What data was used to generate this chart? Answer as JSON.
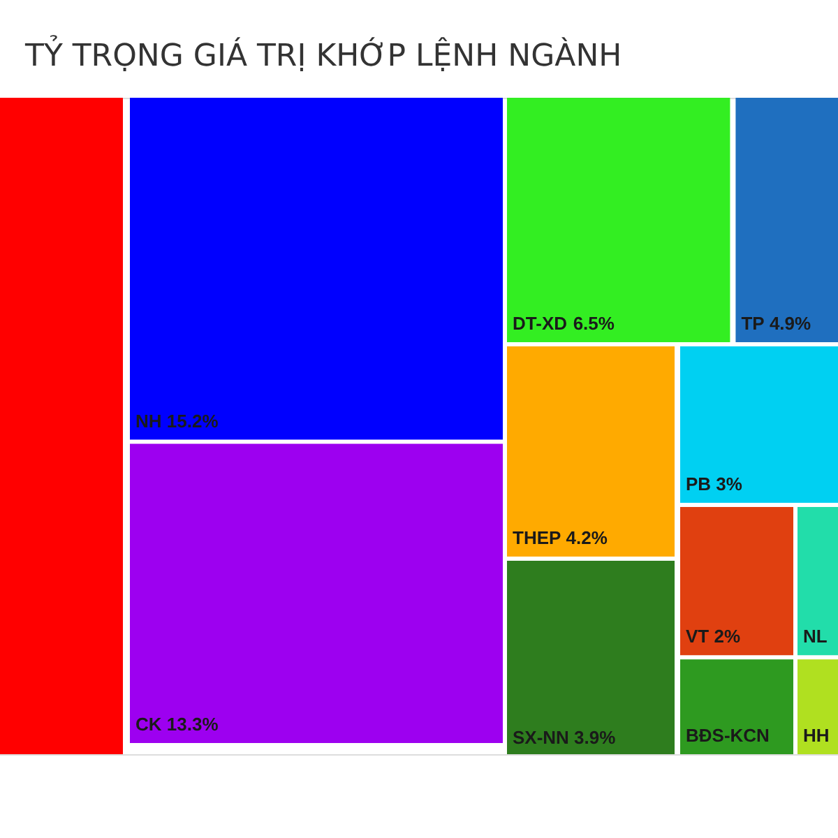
{
  "chart_data": {
    "type": "other",
    "title": "TỶ TRỌNG GIÁ TRỊ KHỚP LỆNH NGÀNH",
    "categories": [
      null,
      "NH",
      "CK",
      "DT-XD",
      "TP",
      "THEP",
      "PB",
      "SX-NN",
      "VT",
      "NL",
      "BĐS-KCN",
      "HH"
    ],
    "values": [
      null,
      15.2,
      13.3,
      6.5,
      4.9,
      4.2,
      3,
      3.9,
      2,
      null,
      null,
      null
    ],
    "value_labels": [
      null,
      "15.2%",
      "13.3%",
      "6.5%",
      "4.9%",
      "4.2%",
      "3%",
      "3.9%",
      "2%",
      null,
      null,
      null
    ],
    "colors": [
      "#ff0000",
      "#0000ff",
      "#9d00f0",
      "#33ee22",
      "#1f6fbf",
      "#ffaa00",
      "#00d0f2",
      "#2e7d1e",
      "#e04010",
      "#22ddaa",
      "#2e9a20",
      "#b0e020"
    ]
  }
}
